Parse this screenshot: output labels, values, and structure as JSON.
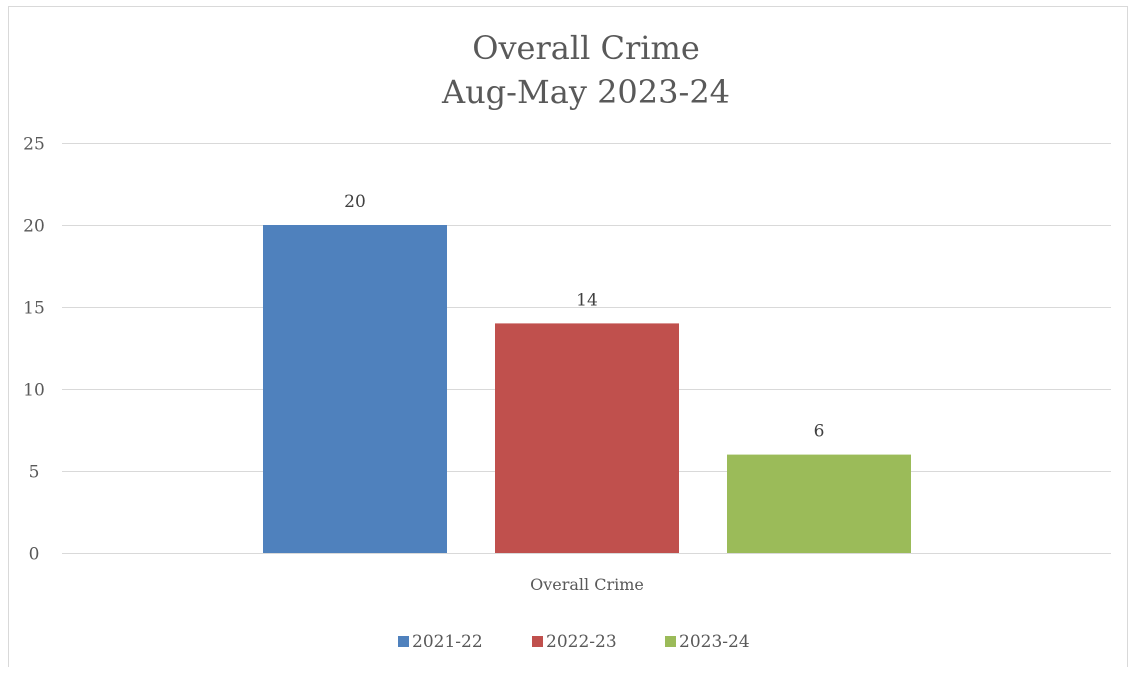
{
  "chart_data": {
    "type": "bar",
    "title_lines": [
      "Overall Crime",
      "Aug-May 2023-24"
    ],
    "categories": [
      "Overall Crime"
    ],
    "series": [
      {
        "name": "2021-22",
        "values": [
          20
        ],
        "color": "#4F81BD"
      },
      {
        "name": "2022-23",
        "values": [
          14
        ],
        "color": "#C0504D"
      },
      {
        "name": "2023-24",
        "values": [
          6
        ],
        "color": "#9BBB59"
      }
    ],
    "ylim": [
      0,
      25
    ],
    "yticks": [
      0,
      5,
      10,
      15,
      20,
      25
    ],
    "grid": true,
    "gridline_color": "#d9d9d9",
    "legend_position": "bottom",
    "data_labels": true
  }
}
